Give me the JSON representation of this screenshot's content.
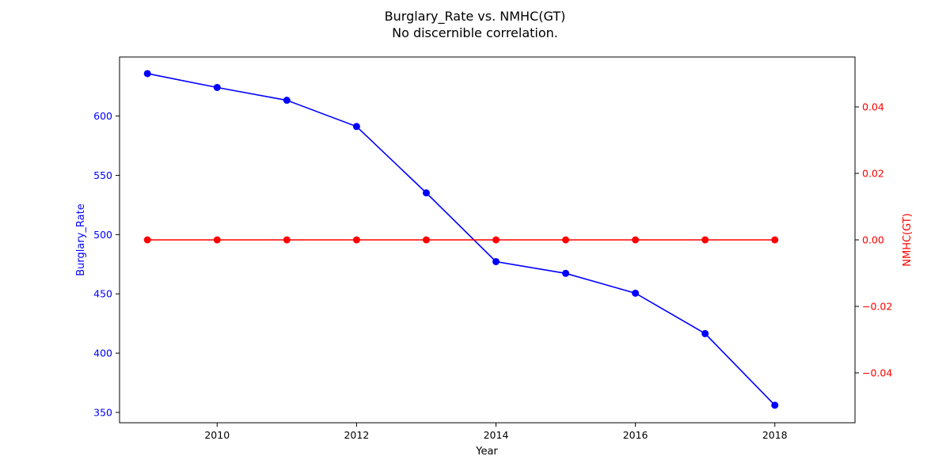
{
  "chart_data": {
    "type": "line",
    "title": "Burglary_Rate vs. NMHC(GT)",
    "subtitle": "No discernible correlation.",
    "xlabel": "Year",
    "ylabel_left": "Burglary_Rate",
    "ylabel_right": "NMHC(GT)",
    "x": [
      2009,
      2010,
      2011,
      2012,
      2013,
      2014,
      2015,
      2016,
      2017,
      2018
    ],
    "x_ticks": [
      "2010",
      "2012",
      "2014",
      "2016",
      "2018"
    ],
    "xlim": [
      2008.6,
      2019.15
    ],
    "y_left_ticks": [
      "350",
      "400",
      "450",
      "500",
      "550",
      "600"
    ],
    "y_left_lim": [
      341.3,
      649.8
    ],
    "y_right_ticks": [
      "−0.04",
      "−0.02",
      "0.00",
      "0.02",
      "0.04"
    ],
    "y_right_lim": [
      -0.055,
      0.055
    ],
    "grid": false,
    "series": [
      {
        "name": "Burglary_Rate",
        "axis": "left",
        "color": "#0000ff",
        "marker": "circle",
        "values": [
          635.8,
          624.1,
          613.3,
          591.2,
          535.2,
          477.2,
          467.3,
          450.6,
          416.5,
          356.1
        ]
      },
      {
        "name": "NMHC(GT)",
        "axis": "right",
        "color": "#ff0000",
        "marker": "circle",
        "values": [
          0,
          0,
          0,
          0,
          0,
          0,
          0,
          0,
          0,
          0
        ]
      }
    ],
    "colors": {
      "left_axis": "#0000ff",
      "right_axis": "#ff0000",
      "text": "#000000"
    }
  }
}
